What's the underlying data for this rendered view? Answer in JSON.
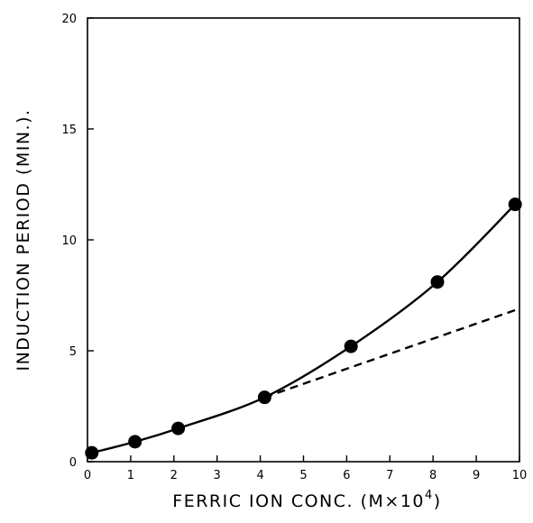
{
  "chart_data": {
    "type": "line",
    "title": "",
    "xlabel": "FERRIC ION CONC. (M×10",
    "xlabel_superscript": "4",
    "xlabel_close": ")",
    "ylabel": "INDUCTION PERIOD (MIN.).",
    "xlim": [
      0,
      10
    ],
    "ylim": [
      0,
      20
    ],
    "x_ticks": [
      0,
      1,
      2,
      3,
      4,
      5,
      6,
      7,
      8,
      9,
      10
    ],
    "x_tick_labels": [
      "0",
      "1",
      "2",
      "3",
      "4",
      "5",
      "6",
      "7",
      "8",
      "9",
      "10"
    ],
    "y_ticks": [
      0,
      5,
      10,
      15,
      20
    ],
    "y_tick_labels": [
      "0",
      "5",
      "10",
      "15",
      "20"
    ],
    "grid": false,
    "series": [
      {
        "style": "solid-with-markers",
        "x": [
          0.1,
          1.1,
          2.1,
          4.1,
          6.1,
          8.1,
          9.9
        ],
        "y": [
          0.4,
          0.9,
          1.5,
          2.9,
          5.2,
          8.1,
          11.6
        ]
      },
      {
        "style": "dashed",
        "x": [
          4.1,
          10.0
        ],
        "y": [
          2.9,
          6.9
        ]
      }
    ],
    "colors": {
      "line": "#000000",
      "marker": "#000000",
      "background": "#ffffff"
    }
  }
}
